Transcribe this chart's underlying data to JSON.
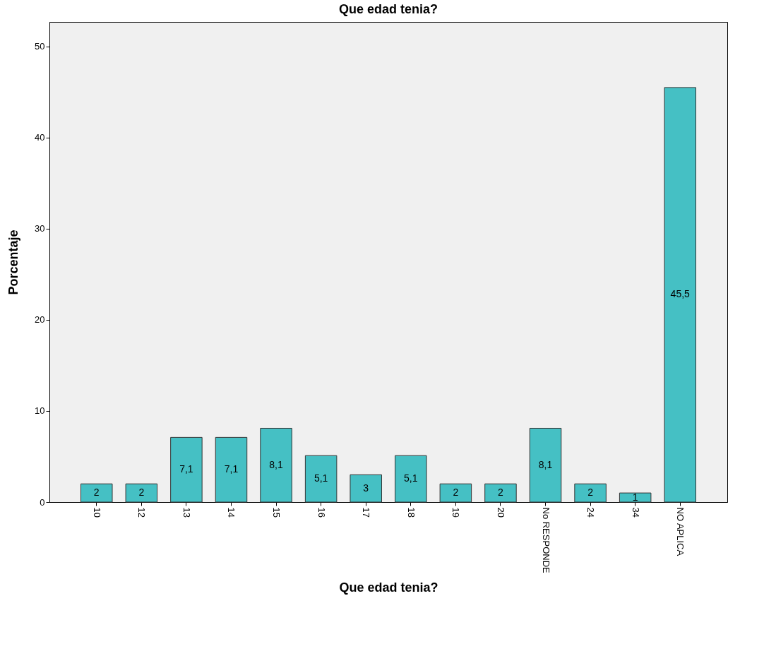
{
  "chart_data": {
    "type": "bar",
    "title": "Que edad tenia?",
    "xlabel": "Que edad tenia?",
    "ylabel": "Porcentaje",
    "categories": [
      "10",
      "12",
      "13",
      "14",
      "15",
      "16",
      "17",
      "18",
      "19",
      "20",
      "No RESPONDE",
      "24",
      "34",
      "NO APLICA"
    ],
    "values": [
      2,
      2,
      7.1,
      7.1,
      8.1,
      5.1,
      3,
      5.1,
      2,
      2,
      8.1,
      2,
      1,
      45.5
    ],
    "value_labels": [
      "2",
      "2",
      "7,1",
      "7,1",
      "8,1",
      "5,1",
      "3",
      "5,1",
      "2",
      "2",
      "8,1",
      "2",
      "1",
      "45,5"
    ],
    "color": "#45c0c4",
    "ylim": [
      0,
      52.7
    ],
    "yticks": [
      0,
      10,
      20,
      30,
      40,
      50
    ],
    "grid": false
  }
}
